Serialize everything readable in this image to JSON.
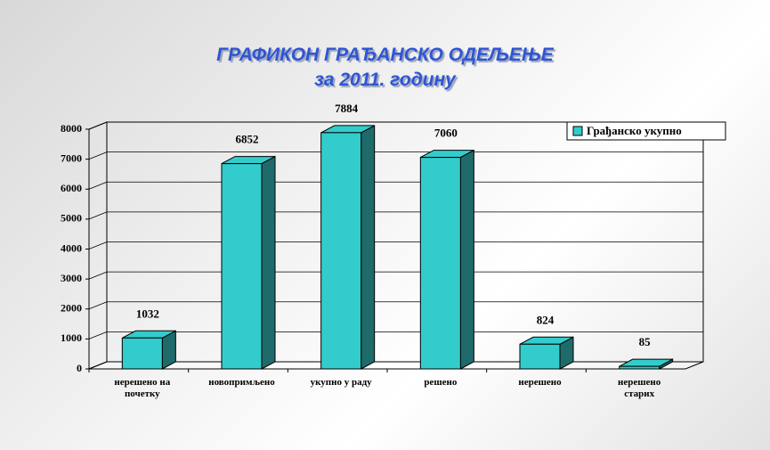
{
  "chart_data": {
    "type": "bar3d",
    "title": "ГРАФИКОН ГРАЂАНСКО ОДЕЉЕЊЕ",
    "subtitle": "за 2011. годину",
    "categories": [
      "нерешено на почетку",
      "новопримљено",
      "укупно у раду",
      "решено",
      "нерешено",
      "нерешено старих"
    ],
    "series": [
      {
        "name": "Грађанско укупно",
        "color": "#33cccc",
        "values": [
          1032,
          6852,
          7884,
          7060,
          824,
          85
        ]
      }
    ],
    "ylim": [
      0,
      8000
    ],
    "yticks": [
      0,
      1000,
      2000,
      3000,
      4000,
      5000,
      6000,
      7000,
      8000
    ],
    "grid": true,
    "legend": "top-right"
  }
}
